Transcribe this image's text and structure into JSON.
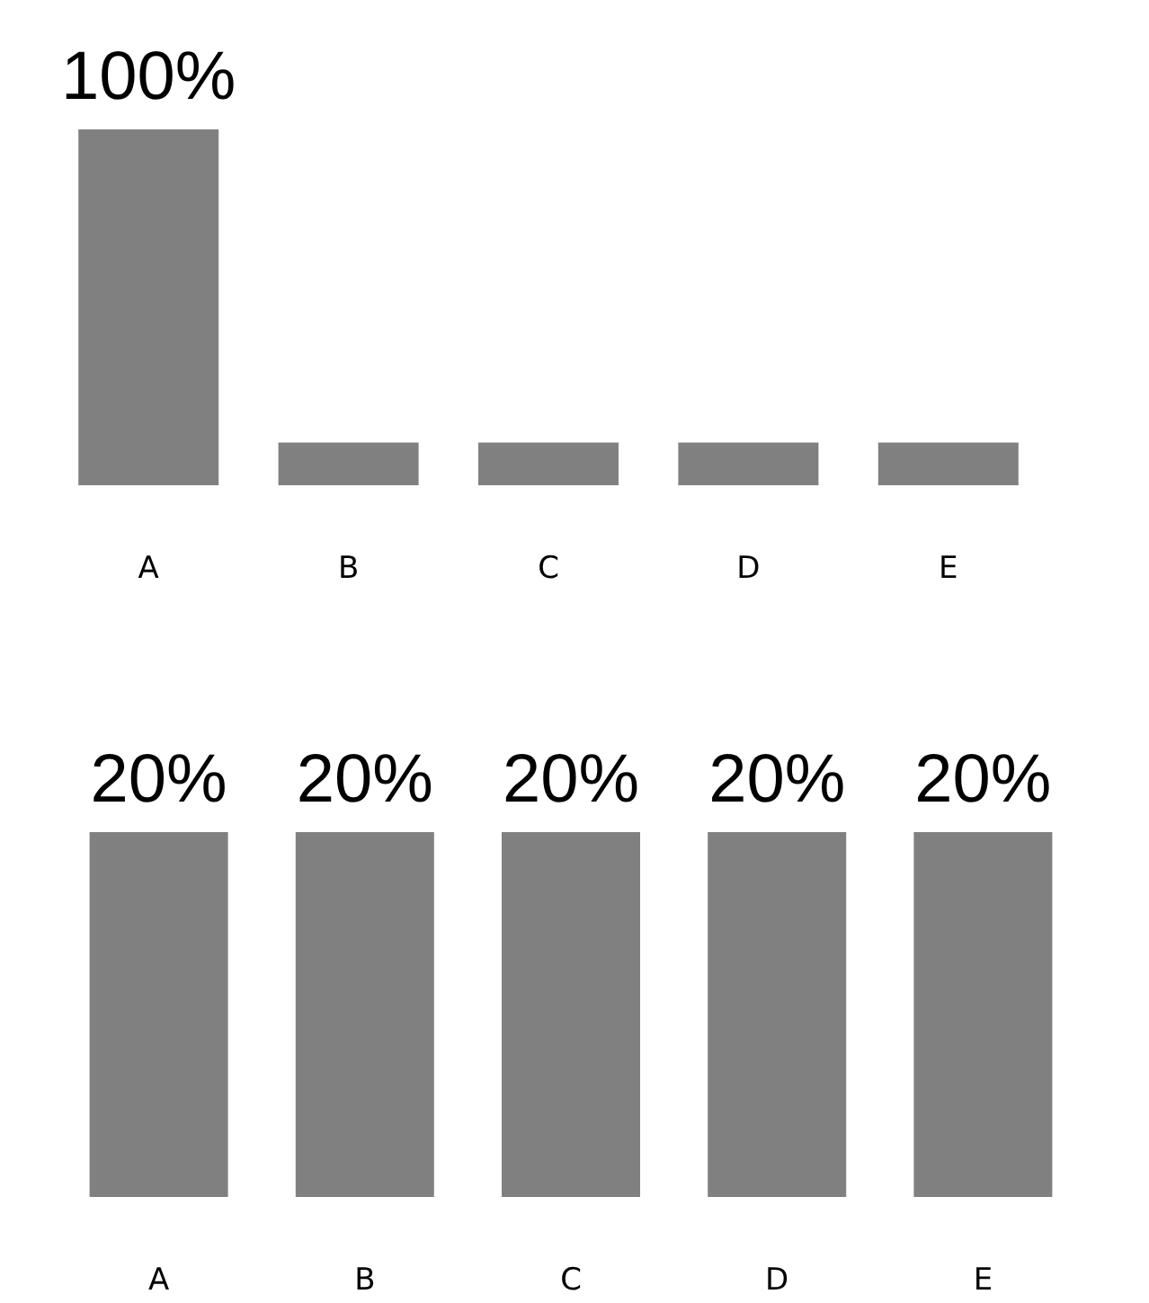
{
  "chart_data": [
    {
      "type": "bar",
      "categories": [
        "A",
        "B",
        "C",
        "D",
        "E"
      ],
      "values": [
        100,
        12,
        12,
        12,
        12
      ],
      "value_labels": [
        "100%",
        null,
        null,
        null,
        null
      ],
      "color": "#808080"
    },
    {
      "type": "bar",
      "categories": [
        "A",
        "B",
        "C",
        "D",
        "E"
      ],
      "values": [
        20,
        20,
        20,
        20,
        20
      ],
      "value_labels": [
        "20%",
        "20%",
        "20%",
        "20%",
        "20%"
      ],
      "color": "#808080"
    }
  ]
}
